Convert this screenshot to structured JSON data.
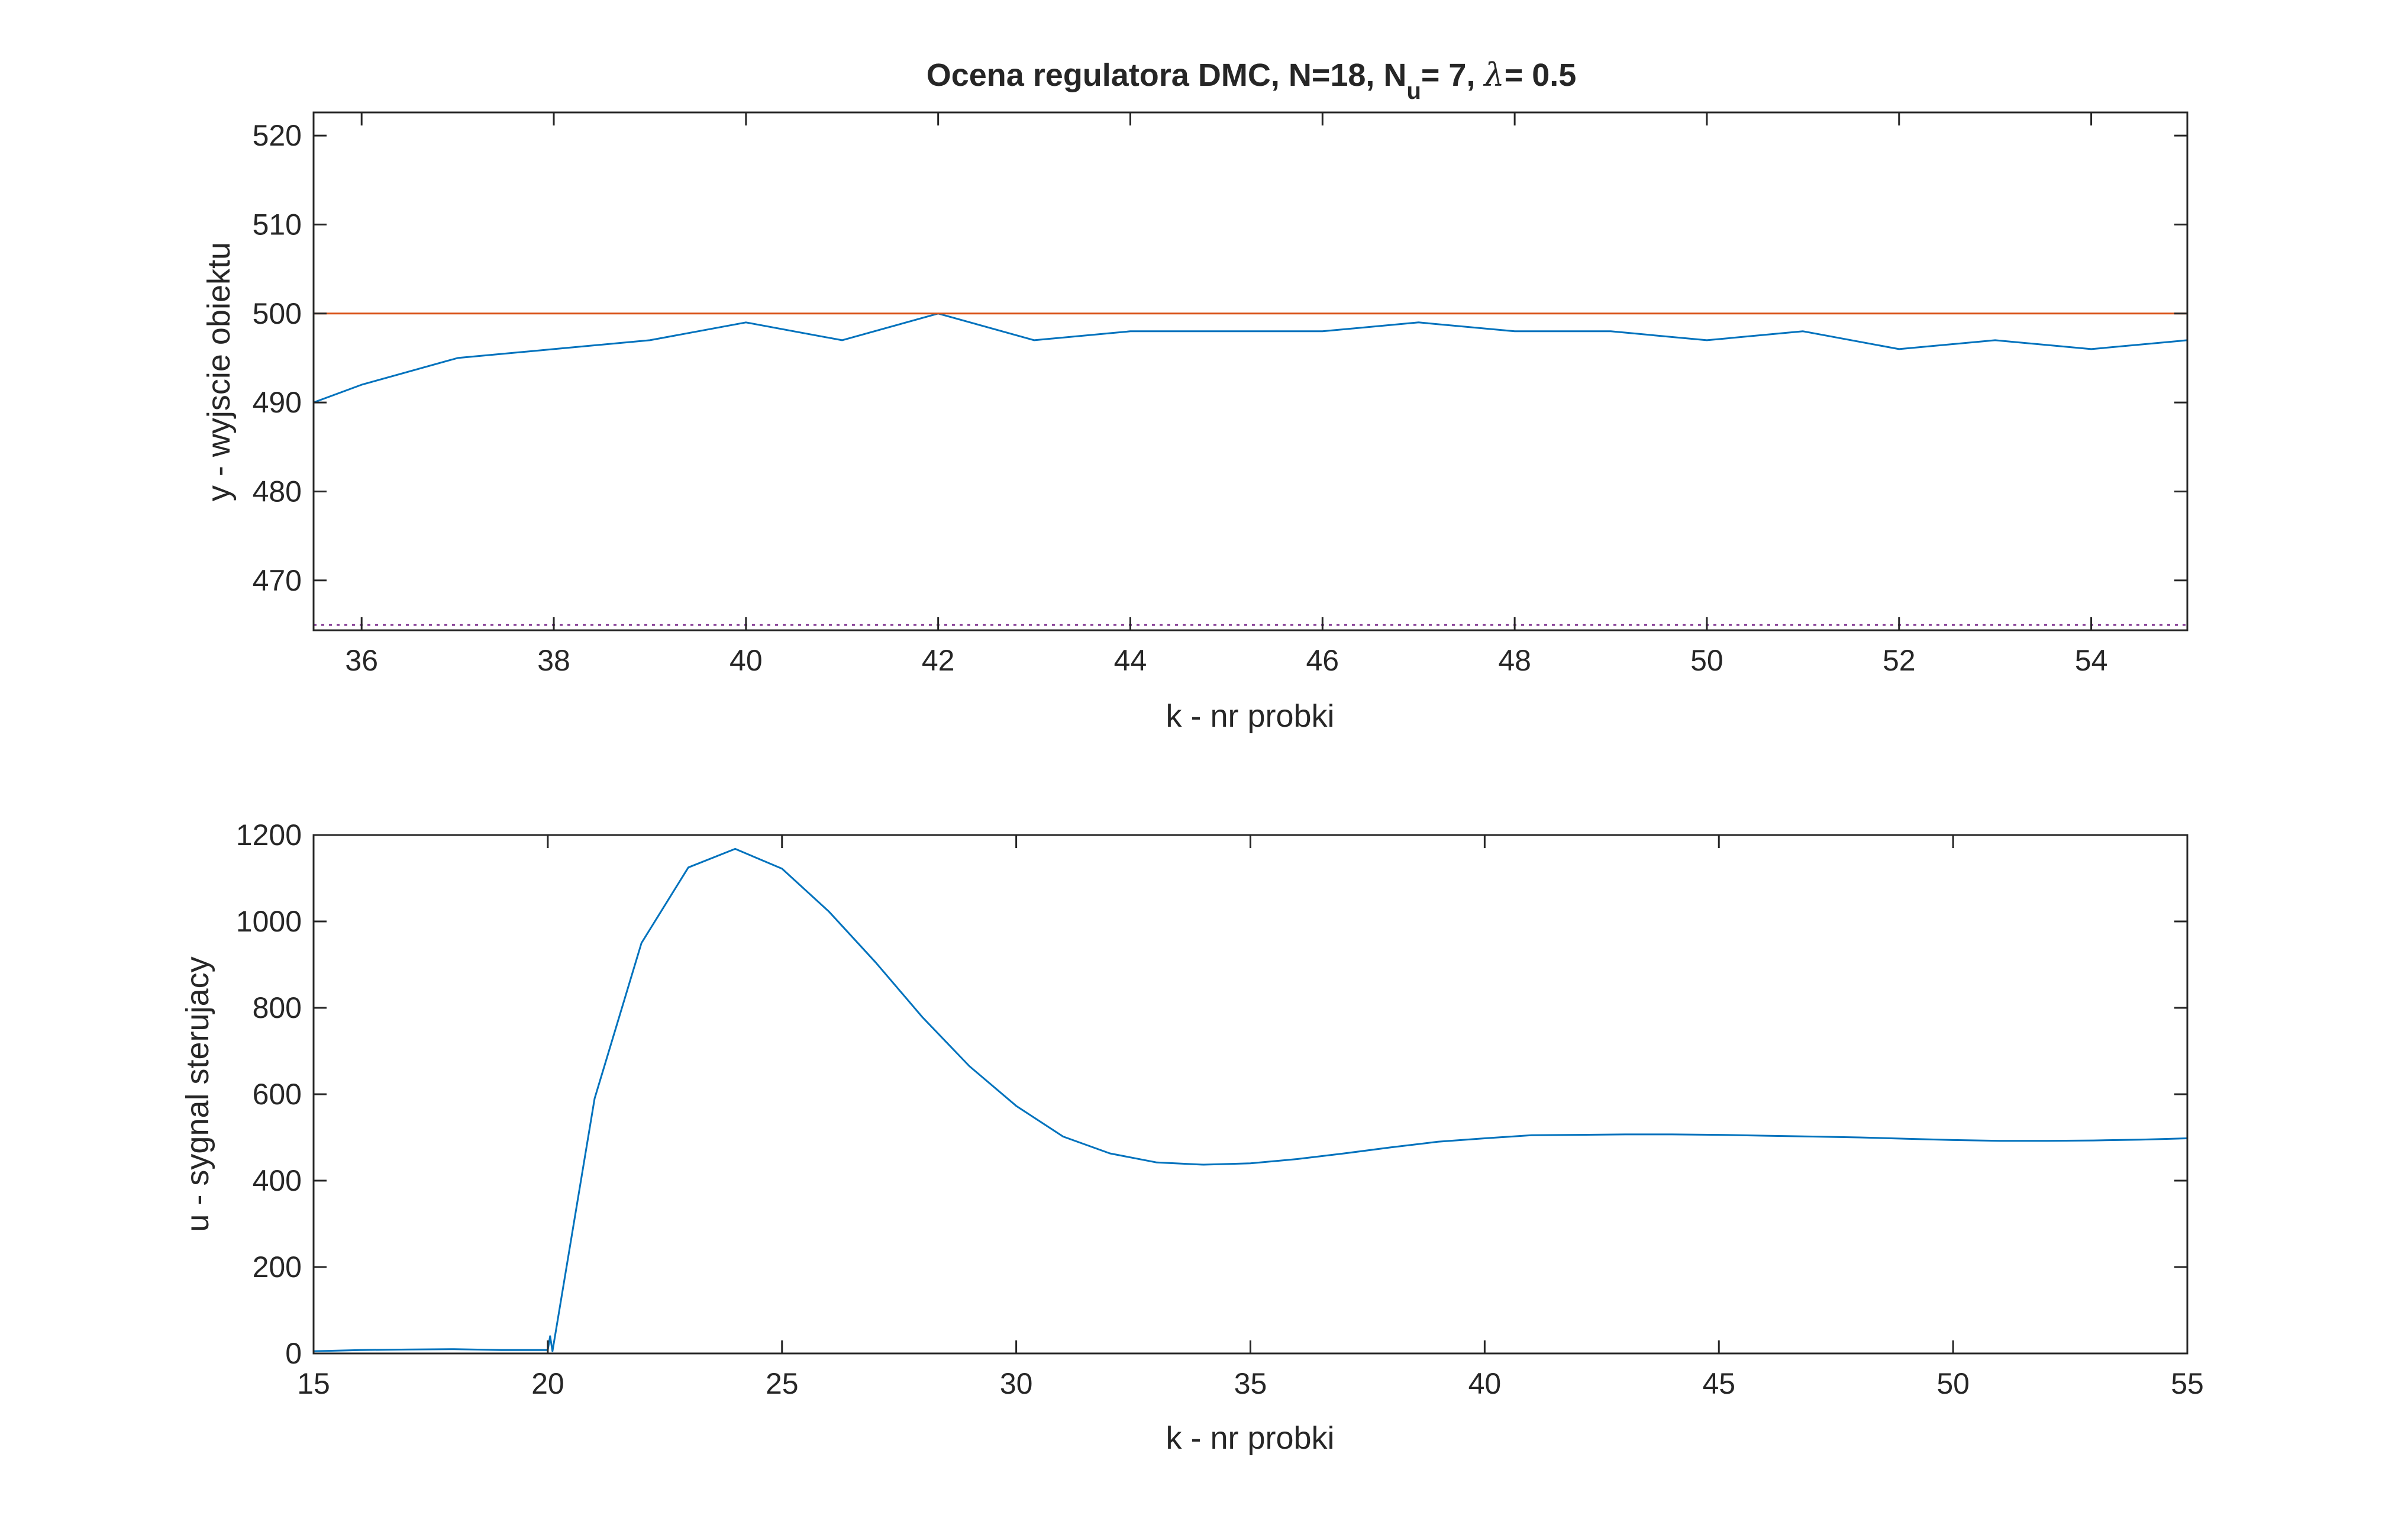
{
  "title": {
    "prefix": "Ocena regulatora DMC, N=18, N",
    "subscript": "u",
    "middle": "= 7, ",
    "lambda_symbol": "λ",
    "suffix": "= 0.5"
  },
  "chart_data": [
    {
      "type": "line",
      "xlabel": "k - nr probki",
      "ylabel": "y - wyjscie obiektu",
      "xlim": [
        35.5,
        55
      ],
      "ylim": [
        464.4,
        522.6
      ],
      "xticks": [
        36,
        38,
        40,
        42,
        44,
        46,
        48,
        50,
        52,
        54
      ],
      "yticks": [
        470,
        480,
        490,
        500,
        510,
        520
      ],
      "grid": false,
      "series": [
        {
          "style": "solid",
          "color": "#0072BD",
          "x": [
            35.5,
            36,
            37,
            38,
            39,
            40,
            41,
            42,
            43,
            44,
            45,
            46,
            47,
            48,
            49,
            50,
            51,
            52,
            53,
            54,
            55
          ],
          "y": [
            490,
            492,
            495,
            496,
            497,
            499,
            497,
            500,
            497,
            498,
            498,
            498,
            499,
            498,
            498,
            497,
            498,
            496,
            497,
            496,
            497
          ]
        },
        {
          "style": "solid",
          "color": "#D95319",
          "x": [
            35.5,
            55
          ],
          "y": [
            500,
            500
          ]
        },
        {
          "style": "dotted",
          "color": "#7E2F8E",
          "x": [
            35.5,
            55
          ],
          "y": [
            465,
            465
          ]
        }
      ]
    },
    {
      "type": "line",
      "xlabel": "k - nr probki",
      "ylabel": "u - sygnal sterujacy",
      "xlim": [
        15,
        55
      ],
      "ylim": [
        0,
        1200
      ],
      "xticks": [
        15,
        20,
        25,
        30,
        35,
        40,
        45,
        50,
        55
      ],
      "yticks": [
        0,
        200,
        400,
        600,
        800,
        1000,
        1200
      ],
      "grid": false,
      "series": [
        {
          "style": "solid",
          "color": "#0072BD",
          "x": [
            15,
            16,
            17,
            18,
            19,
            20,
            20.05,
            20.1,
            21,
            22,
            23,
            24,
            25,
            26,
            27,
            28,
            29,
            30,
            31,
            32,
            33,
            34,
            35,
            36,
            37,
            38,
            39,
            40,
            41,
            42,
            43,
            44,
            45,
            46,
            47,
            48,
            49,
            50,
            51,
            52,
            53,
            54,
            55
          ],
          "y": [
            5,
            8,
            9,
            10,
            8,
            8,
            40,
            5,
            590,
            950,
            1125,
            1168,
            1122,
            1023,
            905,
            778,
            665,
            573,
            502,
            463,
            442,
            437,
            440,
            450,
            463,
            477,
            490,
            498,
            505,
            506,
            507,
            507,
            506,
            504,
            502,
            500,
            497,
            494,
            492,
            492,
            493,
            495,
            498
          ]
        }
      ]
    }
  ]
}
